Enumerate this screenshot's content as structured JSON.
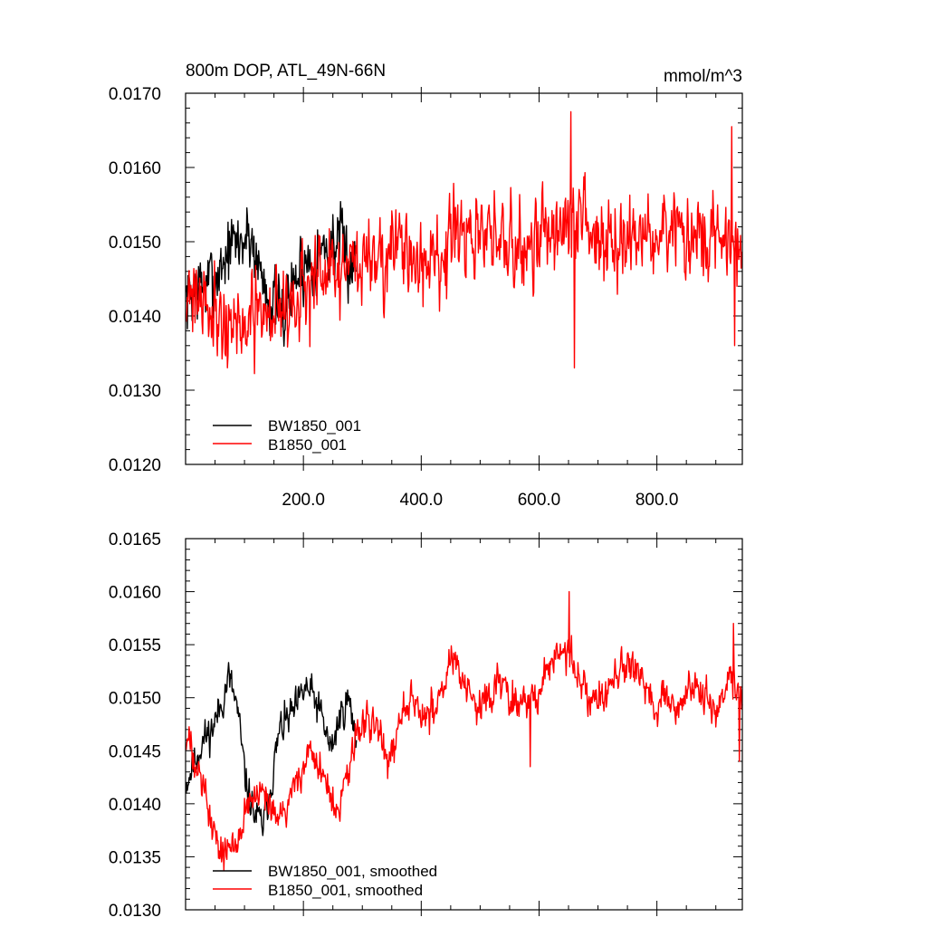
{
  "panels": [
    {
      "title_left": "800m DOP, ATL_49N-66N",
      "title_right": "mmol/m^3",
      "show_x_labels": true,
      "chart_data": {
        "type": "line",
        "xlim": [
          0,
          945
        ],
        "ylim": [
          0.012,
          0.017
        ],
        "x_major_ticks": [
          200,
          400,
          600,
          800
        ],
        "x_tick_labels": [
          "200.0",
          "400.0",
          "600.0",
          "800.0"
        ],
        "y_major_ticks": [
          0.012,
          0.013,
          0.014,
          0.015,
          0.016,
          0.017
        ],
        "y_tick_labels": [
          "0.0120",
          "0.0130",
          "0.0140",
          "0.0150",
          "0.0160",
          "0.0170"
        ],
        "legend_position": "bottom-left",
        "series": [
          {
            "name": "BW1850_001",
            "color": "#000000",
            "x_start": 1,
            "length": 290,
            "base": [
              0.0142,
              0.0144,
              0.0144,
              0.0146,
              0.0149,
              0.015,
              0.0151,
              0.0146,
              0.0142,
              0.014,
              0.0144,
              0.0147,
              0.0148,
              0.0149,
              0.015,
              0.0148,
              0.0147
            ],
            "noise": 0.0005,
            "seed": 7
          },
          {
            "name": "B1850_001",
            "color": "#ff0000",
            "x_start": 1,
            "length": 945,
            "base": [
              0.0144,
              0.0143,
              0.014,
              0.0138,
              0.0139,
              0.0141,
              0.0142,
              0.0143,
              0.0145,
              0.0146,
              0.0147,
              0.0148,
              0.0149,
              0.0148,
              0.0147,
              0.0148,
              0.015,
              0.015,
              0.0151,
              0.0149,
              0.015,
              0.0151,
              0.0152,
              0.0153,
              0.0151,
              0.015,
              0.0151,
              0.015,
              0.015,
              0.0151,
              0.015,
              0.0151,
              0.0149,
              0.0149
            ],
            "noise": 0.0006,
            "seed": 21,
            "extremes": [
              [
                654,
                0.01675
              ],
              [
                660,
                0.0133
              ],
              [
                927,
                0.01655
              ],
              [
                932,
                0.0136
              ]
            ]
          }
        ]
      }
    },
    {
      "title_left": "",
      "title_right": "",
      "show_x_labels": false,
      "chart_data": {
        "type": "line",
        "xlim": [
          0,
          945
        ],
        "ylim": [
          0.013,
          0.0165
        ],
        "x_major_ticks": [
          200,
          400,
          600,
          800
        ],
        "x_tick_labels": [],
        "y_major_ticks": [
          0.013,
          0.0135,
          0.014,
          0.0145,
          0.015,
          0.0155,
          0.016,
          0.0165
        ],
        "y_tick_labels": [
          "0.0130",
          "0.0135",
          "0.0140",
          "0.0145",
          "0.0150",
          "0.0155",
          "0.0160",
          "0.0165"
        ],
        "legend_position": "bottom-left",
        "series": [
          {
            "name": "BW1850_001, smoothed",
            "color": "#000000",
            "x_start": 1,
            "length": 290,
            "base": [
              0.0142,
              0.0144,
              0.0146,
              0.0147,
              0.0149,
              0.0152,
              0.0149,
              0.0142,
              0.0139,
              0.0138,
              0.0142,
              0.0147,
              0.0148,
              0.0149,
              0.0151,
              0.015,
              0.0148,
              0.0145,
              0.0148,
              0.015,
              0.0146
            ],
            "noise": 0.00018,
            "seed": 11
          },
          {
            "name": "B1850_001, smoothed",
            "color": "#ff0000",
            "x_start": 1,
            "length": 945,
            "base": [
              0.0146,
              0.0144,
              0.0138,
              0.0135,
              0.0137,
              0.014,
              0.0141,
              0.0138,
              0.014,
              0.0143,
              0.0145,
              0.0142,
              0.0139,
              0.0144,
              0.0148,
              0.0147,
              0.0144,
              0.0149,
              0.015,
              0.0148,
              0.015,
              0.0154,
              0.0151,
              0.0149,
              0.015,
              0.0152,
              0.015,
              0.0149,
              0.0151,
              0.0153,
              0.0155,
              0.0152,
              0.0149,
              0.015,
              0.0152,
              0.0153,
              0.0152,
              0.0149,
              0.015,
              0.0149,
              0.0151,
              0.015,
              0.0149,
              0.0152,
              0.015
            ],
            "noise": 0.00018,
            "seed": 33,
            "extremes": [
              [
                651,
                0.016
              ],
              [
                585,
                0.01435
              ],
              [
                930,
                0.0157
              ],
              [
                940,
                0.0144
              ]
            ]
          }
        ]
      }
    }
  ]
}
